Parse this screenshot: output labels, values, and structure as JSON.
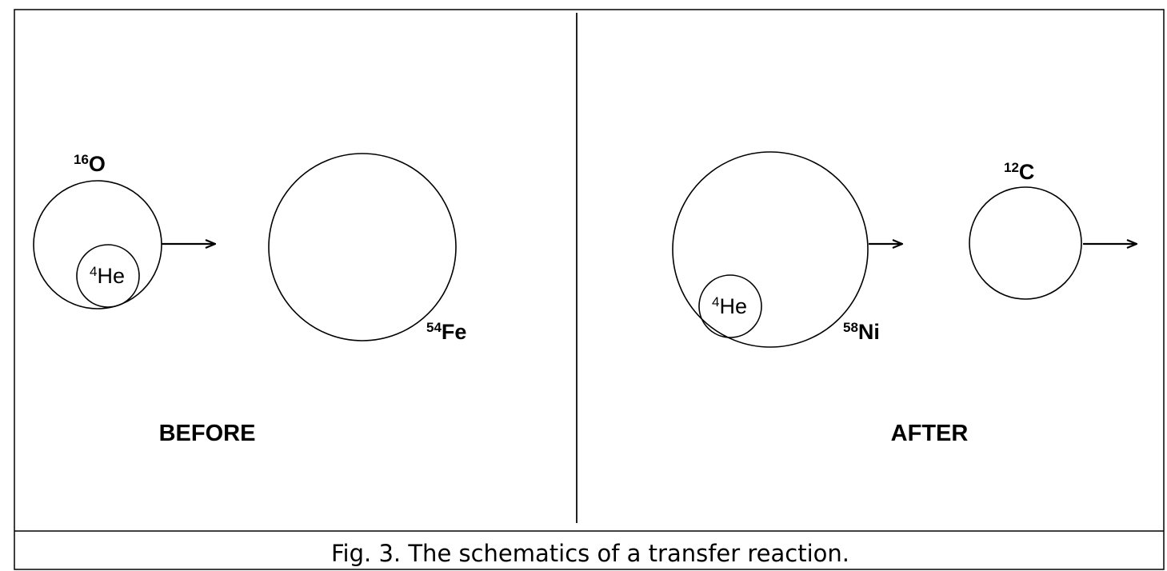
{
  "panels": {
    "before": {
      "title": "BEFORE",
      "projectile": {
        "mass": "16",
        "symbol": "O"
      },
      "cluster": {
        "mass": "4",
        "symbol": "He"
      },
      "target": {
        "mass": "54",
        "symbol": "Fe"
      }
    },
    "after": {
      "title": "AFTER",
      "residual": {
        "mass": "58",
        "symbol": "Ni"
      },
      "cluster": {
        "mass": "4",
        "symbol": "He"
      },
      "ejectile": {
        "mass": "12",
        "symbol": "C"
      }
    }
  },
  "caption": "Fig. 3. The schematics of a transfer reaction."
}
